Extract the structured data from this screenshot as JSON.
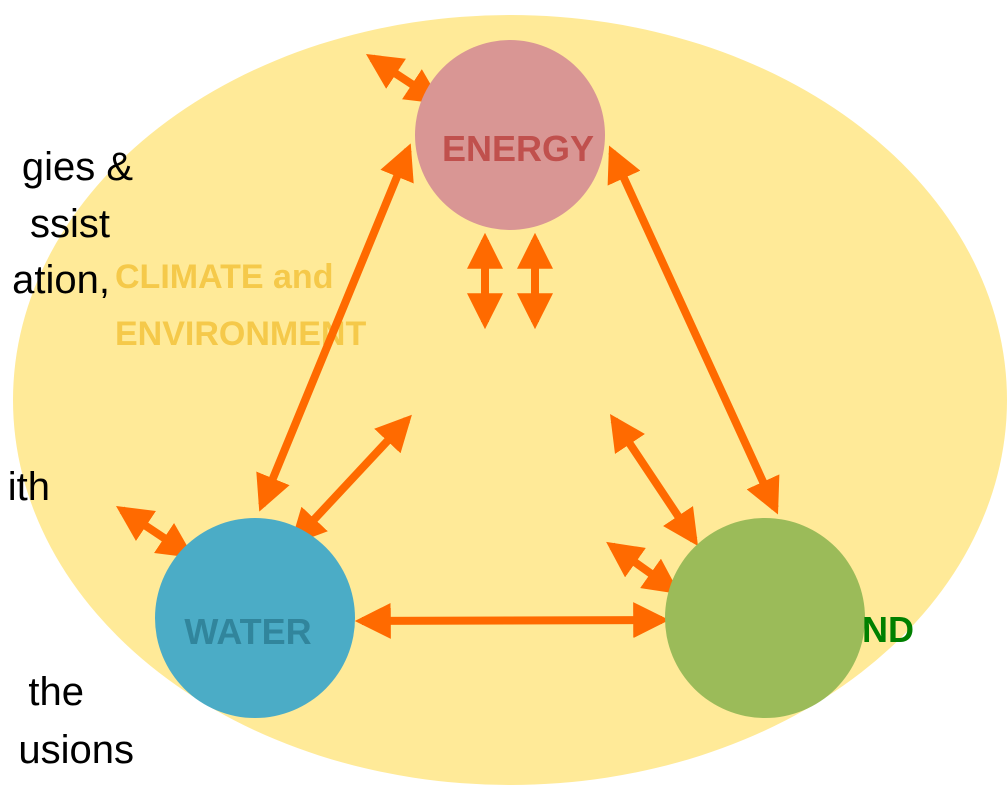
{
  "side_text": [
    "gies &",
    "ssist",
    "ation,",
    "ith",
    "the",
    "usions"
  ],
  "background_label": [
    "CLIMATE and",
    "ENVIRONMENT"
  ],
  "nodes": [
    {
      "label": "ENERGY"
    },
    {
      "label": "WATER"
    },
    {
      "label": "ND"
    }
  ]
}
